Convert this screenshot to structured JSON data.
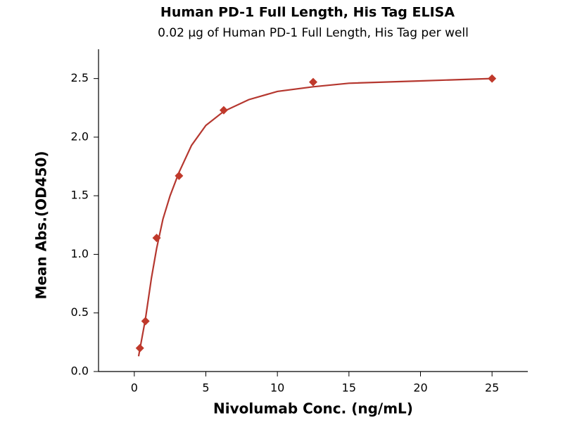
{
  "chart_data": {
    "type": "scatter",
    "title": "Human PD-1 Full Length, His Tag ELISA",
    "subtitle": "0.02 µg of Human PD-1 Full Length, His Tag per well",
    "x_label": "Nivolumab Conc. (ng/mL)",
    "y_label": "Mean Abs.(OD450)",
    "xlim": [
      -2.5,
      27.5
    ],
    "xticks": [
      0,
      5,
      10,
      15,
      20,
      25
    ],
    "ylim": [
      0,
      2.75
    ],
    "yticks": [
      {
        "value": 0,
        "label": "0.0"
      },
      0.5,
      {
        "value": 1,
        "label": "1.0"
      },
      1.5,
      {
        "value": 2,
        "label": "2.0"
      },
      2.5
    ],
    "series": [
      {
        "marker": "diamond",
        "color": "#c0392b",
        "x": [
          0.39,
          0.78,
          1.56,
          3.125,
          6.25,
          12.5,
          25
        ],
        "values": [
          0.2,
          0.43,
          1.14,
          1.67,
          2.23,
          2.47,
          2.5
        ]
      },
      {
        "style": "line",
        "color": "#b5372f",
        "x": [
          0.3,
          0.78,
          1.2,
          1.56,
          2,
          2.5,
          3.125,
          4,
          5,
          6.25,
          8,
          10,
          12.5,
          15,
          20,
          25
        ],
        "values": [
          0.13,
          0.45,
          0.8,
          1.05,
          1.3,
          1.5,
          1.7,
          1.93,
          2.1,
          2.22,
          2.32,
          2.39,
          2.43,
          2.46,
          2.48,
          2.5
        ]
      }
    ]
  }
}
